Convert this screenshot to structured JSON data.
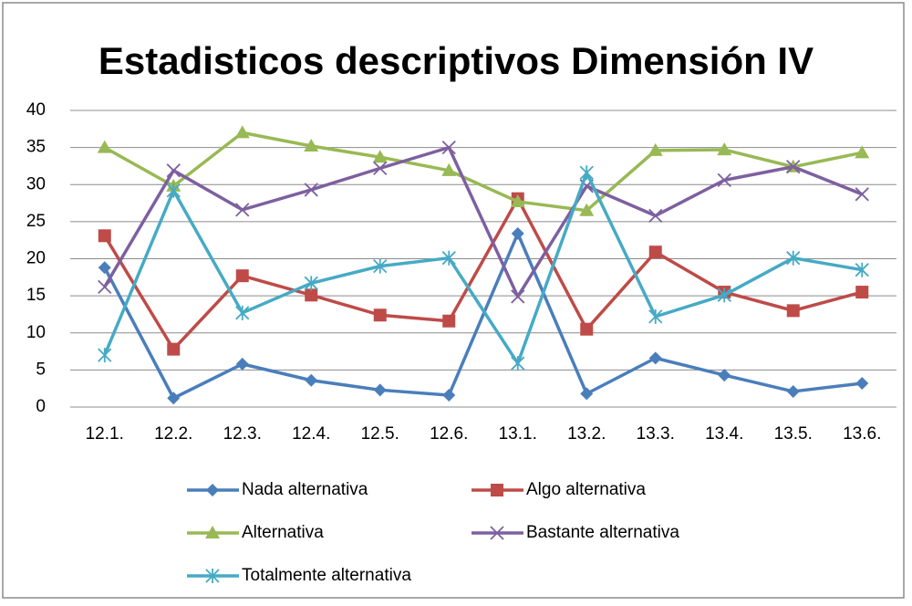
{
  "chart_data": {
    "type": "line",
    "title": "Estadisticos descriptivos Dimensión IV",
    "categories": [
      "12.1.",
      "12.2.",
      "12.3.",
      "12.4.",
      "12.5.",
      "12.6.",
      "13.1.",
      "13.2.",
      "13.3.",
      "13.4.",
      "13.5.",
      "13.6."
    ],
    "series": [
      {
        "name": "Nada alternativa",
        "color": "#4a7ebb",
        "marker": "diamond",
        "values": [
          18.8,
          1.2,
          5.8,
          3.6,
          2.3,
          1.6,
          23.4,
          1.8,
          6.6,
          4.3,
          2.1,
          3.2
        ]
      },
      {
        "name": "Algo alternativa",
        "color": "#be4b48",
        "marker": "square",
        "values": [
          23.1,
          7.8,
          17.7,
          15.1,
          12.4,
          11.6,
          28.1,
          10.5,
          20.9,
          15.5,
          13.0,
          15.5
        ]
      },
      {
        "name": "Alternativa",
        "color": "#98b954",
        "marker": "triangle",
        "values": [
          35.0,
          29.8,
          37.0,
          35.2,
          33.7,
          31.9,
          27.7,
          26.5,
          34.6,
          34.7,
          32.4,
          34.3
        ]
      },
      {
        "name": "Bastante alternativa",
        "color": "#7d60a0",
        "marker": "x",
        "values": [
          16.2,
          31.9,
          26.6,
          29.3,
          32.2,
          35.0,
          14.9,
          29.8,
          25.8,
          30.6,
          32.4,
          28.7
        ]
      },
      {
        "name": "Totalmente alternativa",
        "color": "#46aac5",
        "marker": "star",
        "values": [
          7.0,
          29.2,
          12.7,
          16.7,
          19.0,
          20.1,
          5.9,
          31.6,
          12.2,
          15.1,
          20.1,
          18.5
        ]
      }
    ],
    "ylim": [
      0,
      40
    ],
    "yticks": [
      0,
      5,
      10,
      15,
      20,
      25,
      30,
      35,
      40
    ],
    "grid": true,
    "legend": "bottom"
  }
}
